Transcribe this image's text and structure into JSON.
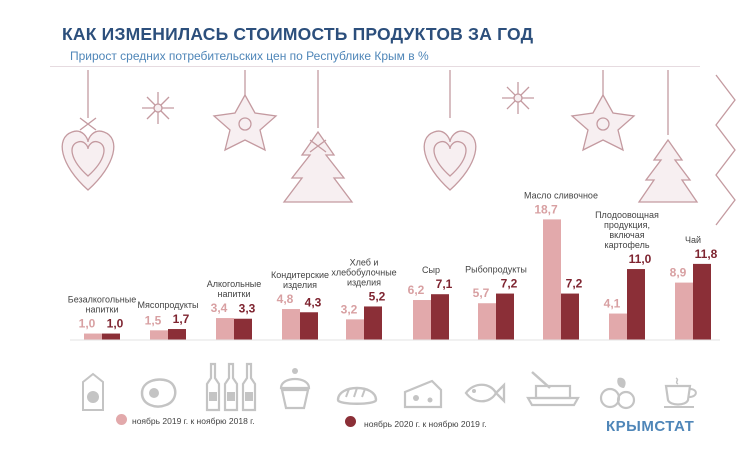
{
  "header": {
    "title": "КАК ИЗМЕНИЛАСЬ СТОИМОСТЬ ПРОДУКТОВ ЗА ГОД",
    "subtitle": "Прирост средних потребительских цен по Республике Крым в %"
  },
  "colors": {
    "light": "#e2a9ab",
    "dark": "#8b2f37",
    "title": "#2c4f7c",
    "subtitle": "#4f86b8",
    "label_light": "#d8a0a2",
    "label_dark": "#7e2430",
    "icon": "#c4c4c4"
  },
  "chart_data": {
    "type": "bar",
    "categories": [
      "Безалкогольные напитки",
      "Мясопродукты",
      "Алкогольные напитки",
      "Кондитерские изделия",
      "Хлеб и хлебобулочные изделия",
      "Сыр",
      "Рыбопродукты",
      "Масло сливочное",
      "Плодоовощная продукция, включая картофель",
      "Чай"
    ],
    "category_lines": [
      [
        "Безалкогольные",
        "напитки"
      ],
      [
        "Мясопродукты"
      ],
      [
        "Алкогольные",
        "напитки"
      ],
      [
        "Кондитерские",
        "изделия"
      ],
      [
        "Хлеб и",
        "хлебобулочные",
        "изделия"
      ],
      [
        "Сыр"
      ],
      [
        "Рыбопродукты"
      ],
      [
        "Масло сливочное"
      ],
      [
        "Плодоовощная",
        "продукция,",
        "включая",
        "картофель"
      ],
      [
        "Чай"
      ]
    ],
    "series": [
      {
        "name": "ноябрь 2019 г. к ноябрю 2018 г.",
        "values": [
          1.0,
          1.5,
          3.4,
          4.8,
          3.2,
          6.2,
          5.7,
          18.7,
          4.1,
          8.9
        ],
        "labels": [
          "1,0",
          "1,5",
          "3,4",
          "4,8",
          "3,2",
          "6,2",
          "5,7",
          "18,7",
          "4,1",
          "8,9"
        ]
      },
      {
        "name": "ноябрь 2020 г. к ноябрю 2019 г.",
        "values": [
          1.0,
          1.7,
          3.3,
          4.3,
          5.2,
          7.1,
          7.2,
          7.2,
          11.0,
          11.8
        ],
        "labels": [
          "1,0",
          "1,7",
          "3,3",
          "4,3",
          "5,2",
          "7,1",
          "7,2",
          "7,2",
          "11,0",
          "11,8"
        ]
      }
    ],
    "icons": [
      "juice-carton-icon",
      "steak-icon",
      "bottles-icon",
      "cupcake-icon",
      "bread-icon",
      "cheese-icon",
      "fish-icon",
      "butter-dish-icon",
      "fruits-icon",
      "tea-cup-icon"
    ],
    "legend_position": "bottom",
    "grid": false
  },
  "footer": {
    "brand": "КРЫМСТАТ"
  }
}
